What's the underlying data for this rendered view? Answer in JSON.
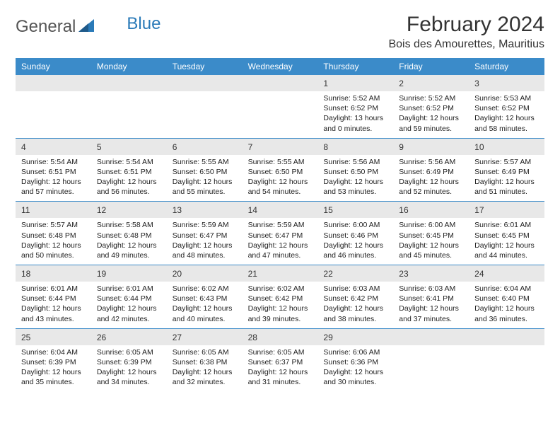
{
  "brand": {
    "name1": "General",
    "name2": "Blue"
  },
  "title": "February 2024",
  "location": "Bois des Amourettes, Mauritius",
  "colors": {
    "header_bg": "#3b8bc9",
    "row_divider": "#3b8bc9",
    "daynum_bg": "#e8e8e8",
    "text": "#333333",
    "brand_blue": "#2a7ab8"
  },
  "day_labels": [
    "Sunday",
    "Monday",
    "Tuesday",
    "Wednesday",
    "Thursday",
    "Friday",
    "Saturday"
  ],
  "weeks": [
    [
      {
        "n": "",
        "sr": "",
        "ss": "",
        "dl": ""
      },
      {
        "n": "",
        "sr": "",
        "ss": "",
        "dl": ""
      },
      {
        "n": "",
        "sr": "",
        "ss": "",
        "dl": ""
      },
      {
        "n": "",
        "sr": "",
        "ss": "",
        "dl": ""
      },
      {
        "n": "1",
        "sr": "Sunrise: 5:52 AM",
        "ss": "Sunset: 6:52 PM",
        "dl": "Daylight: 13 hours and 0 minutes."
      },
      {
        "n": "2",
        "sr": "Sunrise: 5:52 AM",
        "ss": "Sunset: 6:52 PM",
        "dl": "Daylight: 12 hours and 59 minutes."
      },
      {
        "n": "3",
        "sr": "Sunrise: 5:53 AM",
        "ss": "Sunset: 6:52 PM",
        "dl": "Daylight: 12 hours and 58 minutes."
      }
    ],
    [
      {
        "n": "4",
        "sr": "Sunrise: 5:54 AM",
        "ss": "Sunset: 6:51 PM",
        "dl": "Daylight: 12 hours and 57 minutes."
      },
      {
        "n": "5",
        "sr": "Sunrise: 5:54 AM",
        "ss": "Sunset: 6:51 PM",
        "dl": "Daylight: 12 hours and 56 minutes."
      },
      {
        "n": "6",
        "sr": "Sunrise: 5:55 AM",
        "ss": "Sunset: 6:50 PM",
        "dl": "Daylight: 12 hours and 55 minutes."
      },
      {
        "n": "7",
        "sr": "Sunrise: 5:55 AM",
        "ss": "Sunset: 6:50 PM",
        "dl": "Daylight: 12 hours and 54 minutes."
      },
      {
        "n": "8",
        "sr": "Sunrise: 5:56 AM",
        "ss": "Sunset: 6:50 PM",
        "dl": "Daylight: 12 hours and 53 minutes."
      },
      {
        "n": "9",
        "sr": "Sunrise: 5:56 AM",
        "ss": "Sunset: 6:49 PM",
        "dl": "Daylight: 12 hours and 52 minutes."
      },
      {
        "n": "10",
        "sr": "Sunrise: 5:57 AM",
        "ss": "Sunset: 6:49 PM",
        "dl": "Daylight: 12 hours and 51 minutes."
      }
    ],
    [
      {
        "n": "11",
        "sr": "Sunrise: 5:57 AM",
        "ss": "Sunset: 6:48 PM",
        "dl": "Daylight: 12 hours and 50 minutes."
      },
      {
        "n": "12",
        "sr": "Sunrise: 5:58 AM",
        "ss": "Sunset: 6:48 PM",
        "dl": "Daylight: 12 hours and 49 minutes."
      },
      {
        "n": "13",
        "sr": "Sunrise: 5:59 AM",
        "ss": "Sunset: 6:47 PM",
        "dl": "Daylight: 12 hours and 48 minutes."
      },
      {
        "n": "14",
        "sr": "Sunrise: 5:59 AM",
        "ss": "Sunset: 6:47 PM",
        "dl": "Daylight: 12 hours and 47 minutes."
      },
      {
        "n": "15",
        "sr": "Sunrise: 6:00 AM",
        "ss": "Sunset: 6:46 PM",
        "dl": "Daylight: 12 hours and 46 minutes."
      },
      {
        "n": "16",
        "sr": "Sunrise: 6:00 AM",
        "ss": "Sunset: 6:45 PM",
        "dl": "Daylight: 12 hours and 45 minutes."
      },
      {
        "n": "17",
        "sr": "Sunrise: 6:01 AM",
        "ss": "Sunset: 6:45 PM",
        "dl": "Daylight: 12 hours and 44 minutes."
      }
    ],
    [
      {
        "n": "18",
        "sr": "Sunrise: 6:01 AM",
        "ss": "Sunset: 6:44 PM",
        "dl": "Daylight: 12 hours and 43 minutes."
      },
      {
        "n": "19",
        "sr": "Sunrise: 6:01 AM",
        "ss": "Sunset: 6:44 PM",
        "dl": "Daylight: 12 hours and 42 minutes."
      },
      {
        "n": "20",
        "sr": "Sunrise: 6:02 AM",
        "ss": "Sunset: 6:43 PM",
        "dl": "Daylight: 12 hours and 40 minutes."
      },
      {
        "n": "21",
        "sr": "Sunrise: 6:02 AM",
        "ss": "Sunset: 6:42 PM",
        "dl": "Daylight: 12 hours and 39 minutes."
      },
      {
        "n": "22",
        "sr": "Sunrise: 6:03 AM",
        "ss": "Sunset: 6:42 PM",
        "dl": "Daylight: 12 hours and 38 minutes."
      },
      {
        "n": "23",
        "sr": "Sunrise: 6:03 AM",
        "ss": "Sunset: 6:41 PM",
        "dl": "Daylight: 12 hours and 37 minutes."
      },
      {
        "n": "24",
        "sr": "Sunrise: 6:04 AM",
        "ss": "Sunset: 6:40 PM",
        "dl": "Daylight: 12 hours and 36 minutes."
      }
    ],
    [
      {
        "n": "25",
        "sr": "Sunrise: 6:04 AM",
        "ss": "Sunset: 6:39 PM",
        "dl": "Daylight: 12 hours and 35 minutes."
      },
      {
        "n": "26",
        "sr": "Sunrise: 6:05 AM",
        "ss": "Sunset: 6:39 PM",
        "dl": "Daylight: 12 hours and 34 minutes."
      },
      {
        "n": "27",
        "sr": "Sunrise: 6:05 AM",
        "ss": "Sunset: 6:38 PM",
        "dl": "Daylight: 12 hours and 32 minutes."
      },
      {
        "n": "28",
        "sr": "Sunrise: 6:05 AM",
        "ss": "Sunset: 6:37 PM",
        "dl": "Daylight: 12 hours and 31 minutes."
      },
      {
        "n": "29",
        "sr": "Sunrise: 6:06 AM",
        "ss": "Sunset: 6:36 PM",
        "dl": "Daylight: 12 hours and 30 minutes."
      },
      {
        "n": "",
        "sr": "",
        "ss": "",
        "dl": ""
      },
      {
        "n": "",
        "sr": "",
        "ss": "",
        "dl": ""
      }
    ]
  ]
}
